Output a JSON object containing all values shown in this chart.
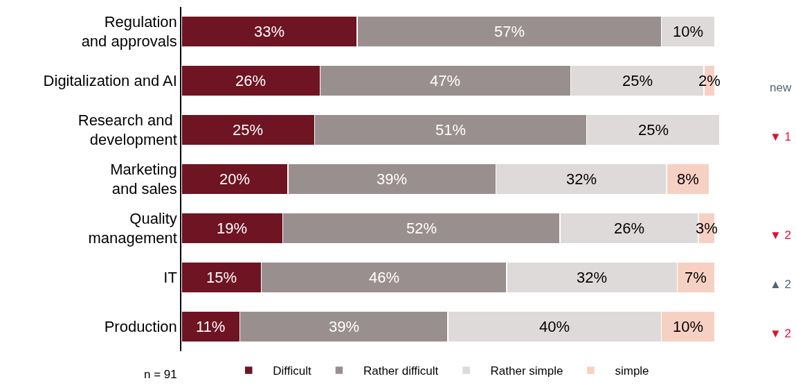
{
  "chart_data": {
    "type": "bar",
    "orientation": "horizontal",
    "stacked": true,
    "tick_labels": "y",
    "legend": "bottom",
    "categories": [
      "Regulation\nand approvals",
      "Digitalization and AI",
      "Research and \ndevelopment",
      "Marketing\nand sales",
      "Quality\nmanagement",
      "IT",
      "Production"
    ],
    "series": [
      {
        "name": "Difficult",
        "color": "#6e1423",
        "values": [
          33,
          26,
          25,
          20,
          19,
          15,
          11
        ],
        "value_labels": [
          "33%",
          "26%",
          "25%",
          "20%",
          "19%",
          "15%",
          "11%"
        ]
      },
      {
        "name": "Rather difficult",
        "color": "#9a8f8f",
        "values": [
          57,
          47,
          51,
          39,
          52,
          46,
          39
        ],
        "value_labels": [
          "57%",
          "47%",
          "51%",
          "39%",
          "52%",
          "46%",
          "39%"
        ]
      },
      {
        "name": "Rather simple",
        "color": "#dedad9",
        "values": [
          10,
          25,
          25,
          32,
          26,
          32,
          40
        ],
        "value_labels": [
          "10%",
          "25%",
          "25%",
          "32%",
          "26%",
          "32%",
          "40%"
        ]
      },
      {
        "name": "simple",
        "color": "#f7d0c4",
        "values": [
          null,
          2,
          null,
          8,
          3,
          7,
          10
        ],
        "value_labels": [
          null,
          "2%",
          null,
          "8%",
          "3%",
          "7%",
          "10%"
        ]
      }
    ],
    "annotations": [
      "n = 91",
      "new",
      "▼ 1",
      "▼ 2",
      "▲ 2",
      "▼ 2"
    ]
  }
}
